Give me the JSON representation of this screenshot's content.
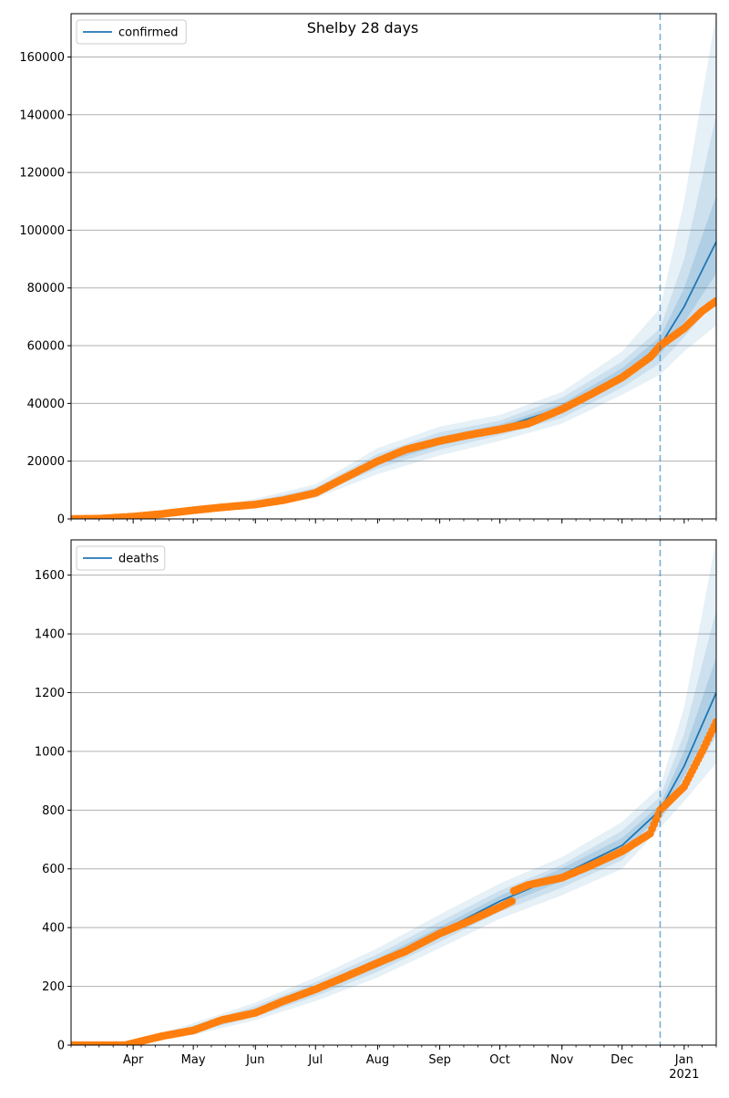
{
  "figure": {
    "title": "Shelby 28 days"
  },
  "colors": {
    "model_line": "#1f77b4",
    "band_fill": "#1f77b4",
    "observed_points": "#ff7f0e",
    "forecast_divider": "#1f77b4",
    "grid": "#b0b0b0"
  },
  "chart_data": [
    {
      "type": "line",
      "panel": "top",
      "title": "Shelby 28 days",
      "xlabel": "",
      "ylabel": "",
      "x_range": [
        "2020-03-01",
        "2021-01-17"
      ],
      "x_ticks": [
        "Apr",
        "May",
        "Jun",
        "Jul",
        "Aug",
        "Sep",
        "Oct",
        "Nov",
        "Dec",
        "Jan"
      ],
      "x_tick_dates": [
        "2020-04-01",
        "2020-05-01",
        "2020-06-01",
        "2020-07-01",
        "2020-08-01",
        "2020-09-01",
        "2020-10-01",
        "2020-11-01",
        "2020-12-01",
        "2021-01-01"
      ],
      "x_year_label": "2021",
      "ylim": [
        0,
        175000
      ],
      "y_ticks": [
        "0",
        "20000",
        "40000",
        "60000",
        "80000",
        "100000",
        "120000",
        "140000",
        "160000"
      ],
      "y_tick_values": [
        0,
        20000,
        40000,
        60000,
        80000,
        100000,
        120000,
        140000,
        160000
      ],
      "grid": "horizontal",
      "legend": {
        "placement": "upper-left",
        "entries": [
          "confirmed"
        ]
      },
      "forecast_start": "2020-12-20",
      "series": [
        {
          "name": "confirmed",
          "kind": "model_fit",
          "x": [
            "2020-03-01",
            "2020-04-01",
            "2020-05-01",
            "2020-06-01",
            "2020-07-01",
            "2020-08-01",
            "2020-09-01",
            "2020-10-01",
            "2020-11-01",
            "2020-12-01",
            "2020-12-20",
            "2021-01-01",
            "2021-01-17"
          ],
          "y": [
            0,
            500,
            2500,
            5500,
            9500,
            20000,
            27000,
            31500,
            38500,
            50000,
            60000,
            73500,
            96000
          ]
        },
        {
          "kind": "observed",
          "x": [
            "2020-03-01",
            "2020-03-15",
            "2020-04-01",
            "2020-04-15",
            "2020-05-01",
            "2020-05-15",
            "2020-06-01",
            "2020-06-15",
            "2020-07-01",
            "2020-07-15",
            "2020-08-01",
            "2020-08-15",
            "2020-09-01",
            "2020-09-15",
            "2020-10-01",
            "2020-10-15",
            "2020-11-01",
            "2020-11-15",
            "2020-12-01",
            "2020-12-15",
            "2020-12-20",
            "2021-01-01",
            "2021-01-10",
            "2021-01-17"
          ],
          "y": [
            0,
            100,
            800,
            1700,
            3000,
            4000,
            5000,
            6500,
            9000,
            14000,
            20000,
            24000,
            27000,
            29000,
            31000,
            33000,
            38000,
            43000,
            49000,
            56000,
            60000,
            66000,
            72000,
            75500
          ]
        }
      ],
      "bands": [
        {
          "x": [
            "2020-03-01",
            "2020-04-01",
            "2020-05-01",
            "2020-06-01",
            "2020-07-01",
            "2020-08-01",
            "2020-09-01",
            "2020-10-01",
            "2020-11-01",
            "2020-12-01",
            "2020-12-20",
            "2021-01-01",
            "2021-01-17"
          ],
          "low": [
            0,
            300,
            2000,
            4200,
            7200,
            15500,
            22000,
            27000,
            33000,
            43000,
            50000,
            58000,
            67000
          ],
          "high": [
            0,
            700,
            3200,
            7000,
            12000,
            24500,
            32000,
            36000,
            44000,
            58000,
            73000,
            110000,
            175000
          ]
        },
        {
          "x": [
            "2020-03-01",
            "2020-04-01",
            "2020-05-01",
            "2020-06-01",
            "2020-07-01",
            "2020-08-01",
            "2020-09-01",
            "2020-10-01",
            "2020-11-01",
            "2020-12-01",
            "2020-12-20",
            "2021-01-01",
            "2021-01-17"
          ],
          "low": [
            0,
            400,
            2200,
            4800,
            8300,
            17500,
            24000,
            29000,
            35000,
            45500,
            54000,
            63000,
            76000
          ],
          "high": [
            0,
            600,
            2800,
            6200,
            10800,
            22500,
            30000,
            34000,
            42000,
            54500,
            66000,
            90000,
            140000
          ]
        },
        {
          "x": [
            "2020-03-01",
            "2020-04-01",
            "2020-05-01",
            "2020-06-01",
            "2020-07-01",
            "2020-08-01",
            "2020-09-01",
            "2020-10-01",
            "2020-11-01",
            "2020-12-01",
            "2020-12-20",
            "2021-01-01",
            "2021-01-17"
          ],
          "low": [
            0,
            450,
            2350,
            5100,
            8900,
            18700,
            25500,
            30300,
            37000,
            47800,
            57000,
            68000,
            85000
          ],
          "high": [
            0,
            550,
            2650,
            5900,
            10100,
            21300,
            28500,
            32700,
            40000,
            52200,
            63000,
            80000,
            112000
          ]
        }
      ]
    },
    {
      "type": "line",
      "panel": "bottom",
      "xlabel": "",
      "ylabel": "",
      "x_range": [
        "2020-03-01",
        "2021-01-17"
      ],
      "x_ticks": [
        "Apr",
        "May",
        "Jun",
        "Jul",
        "Aug",
        "Sep",
        "Oct",
        "Nov",
        "Dec",
        "Jan"
      ],
      "x_tick_dates": [
        "2020-04-01",
        "2020-05-01",
        "2020-06-01",
        "2020-07-01",
        "2020-08-01",
        "2020-09-01",
        "2020-10-01",
        "2020-11-01",
        "2020-12-01",
        "2021-01-01"
      ],
      "x_year_label": "2021",
      "ylim": [
        0,
        1720
      ],
      "y_ticks": [
        "0",
        "200",
        "400",
        "600",
        "800",
        "1000",
        "1200",
        "1400",
        "1600"
      ],
      "y_tick_values": [
        0,
        200,
        400,
        600,
        800,
        1000,
        1200,
        1400,
        1600
      ],
      "grid": "horizontal",
      "legend": {
        "placement": "upper-left",
        "entries": [
          "deaths"
        ]
      },
      "forecast_start": "2020-12-20",
      "series": [
        {
          "name": "deaths",
          "kind": "model_fit",
          "x": [
            "2020-03-01",
            "2020-03-28",
            "2020-04-15",
            "2020-05-01",
            "2020-06-01",
            "2020-07-01",
            "2020-08-01",
            "2020-09-01",
            "2020-10-01",
            "2020-11-01",
            "2020-12-01",
            "2020-12-20",
            "2021-01-01",
            "2021-01-17"
          ],
          "y": [
            0,
            0,
            30,
            55,
            115,
            190,
            280,
            385,
            490,
            580,
            680,
            800,
            950,
            1200
          ]
        },
        {
          "kind": "observed",
          "x": [
            "2020-03-01",
            "2020-03-28",
            "2020-04-15",
            "2020-05-01",
            "2020-05-15",
            "2020-06-01",
            "2020-06-15",
            "2020-07-01",
            "2020-07-15",
            "2020-08-01",
            "2020-08-15",
            "2020-09-01",
            "2020-09-15",
            "2020-10-01",
            "2020-10-07",
            "2020-10-08",
            "2020-10-15",
            "2020-11-01",
            "2020-11-15",
            "2020-12-01",
            "2020-12-15",
            "2020-12-20",
            "2021-01-01",
            "2021-01-10",
            "2021-01-17"
          ],
          "y": [
            0,
            0,
            30,
            50,
            85,
            110,
            150,
            190,
            230,
            280,
            320,
            380,
            420,
            470,
            490,
            525,
            545,
            570,
            610,
            660,
            720,
            800,
            880,
            1000,
            1100
          ]
        }
      ],
      "bands": [
        {
          "x": [
            "2020-03-01",
            "2020-03-28",
            "2020-04-15",
            "2020-05-01",
            "2020-06-01",
            "2020-07-01",
            "2020-08-01",
            "2020-09-01",
            "2020-10-01",
            "2020-11-01",
            "2020-12-01",
            "2020-12-20",
            "2021-01-01",
            "2021-01-17"
          ],
          "low": [
            0,
            0,
            20,
            35,
            85,
            150,
            230,
            330,
            430,
            510,
            600,
            740,
            830,
            960
          ],
          "high": [
            0,
            0,
            40,
            75,
            145,
            230,
            330,
            445,
            550,
            640,
            760,
            880,
            1150,
            1720
          ]
        },
        {
          "x": [
            "2020-03-01",
            "2020-03-28",
            "2020-04-15",
            "2020-05-01",
            "2020-06-01",
            "2020-07-01",
            "2020-08-01",
            "2020-09-01",
            "2020-10-01",
            "2020-11-01",
            "2020-12-01",
            "2020-12-20",
            "2021-01-01",
            "2021-01-17"
          ],
          "low": [
            0,
            0,
            24,
            43,
            97,
            166,
            250,
            352,
            454,
            536,
            630,
            765,
            880,
            1050
          ],
          "high": [
            0,
            0,
            36,
            67,
            133,
            214,
            310,
            420,
            526,
            614,
            730,
            845,
            1060,
            1480
          ]
        },
        {
          "x": [
            "2020-03-01",
            "2020-03-28",
            "2020-04-15",
            "2020-05-01",
            "2020-06-01",
            "2020-07-01",
            "2020-08-01",
            "2020-09-01",
            "2020-10-01",
            "2020-11-01",
            "2020-12-01",
            "2020-12-20",
            "2021-01-01",
            "2021-01-17"
          ],
          "low": [
            0,
            0,
            27,
            49,
            106,
            178,
            265,
            368,
            472,
            558,
            655,
            782,
            915,
            1120
          ],
          "high": [
            0,
            0,
            33,
            61,
            124,
            202,
            295,
            402,
            508,
            602,
            705,
            818,
            1000,
            1320
          ]
        }
      ]
    }
  ]
}
